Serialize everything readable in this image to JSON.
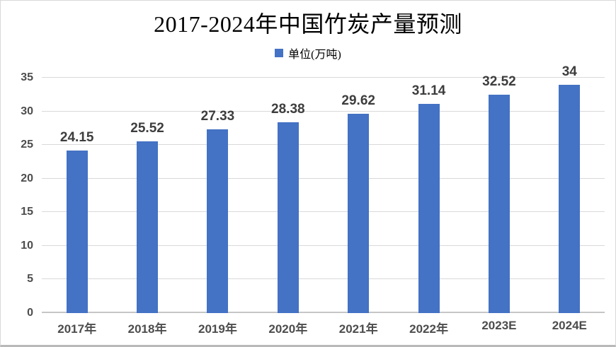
{
  "chart_data": {
    "type": "bar",
    "title": "2017-2024年中国竹炭产量预测",
    "legend": "单位(万吨)",
    "categories": [
      "2017年",
      "2018年",
      "2019年",
      "2020年",
      "2021年",
      "2022年",
      "2023E",
      "2024E"
    ],
    "values": [
      24.15,
      25.52,
      27.33,
      28.38,
      29.62,
      31.14,
      32.52,
      34
    ],
    "value_labels": [
      "24.15",
      "25.52",
      "27.33",
      "28.38",
      "29.62",
      "31.14",
      "32.52",
      "34"
    ],
    "xlabel": "",
    "ylabel": "",
    "ylim": [
      0,
      35
    ],
    "yticks": [
      0,
      5,
      10,
      15,
      20,
      25,
      30,
      35
    ],
    "grid": true,
    "legend_position": "top",
    "colors": {
      "bar": "#4472C4",
      "gridline": "#d9d9d9",
      "axis_line": "#c6c6c6",
      "title_text": "#000000",
      "data_label_text": "#3d3d3d",
      "axis_label_text": "#4d4d4d"
    }
  }
}
